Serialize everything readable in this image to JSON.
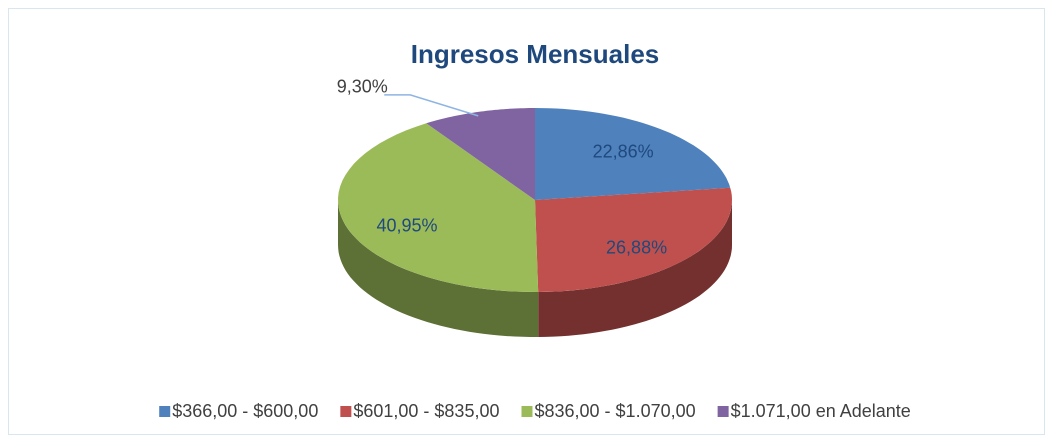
{
  "chart_data": {
    "type": "pie3d",
    "title": "Ingresos Mensuales",
    "categories": [
      "$366,00 - $600,00",
      "$601,00 - $835,00",
      "$836,00 - $1.070,00",
      "$1.071,00 en Adelante"
    ],
    "values": [
      22.86,
      26.88,
      40.95,
      9.3
    ],
    "value_labels": [
      "22,86%",
      "26,88%",
      "40,95%",
      "9,30%"
    ],
    "colors": [
      "#4f81bd",
      "#c0504d",
      "#9bbb59",
      "#8064a2"
    ],
    "legend": "bottom"
  }
}
